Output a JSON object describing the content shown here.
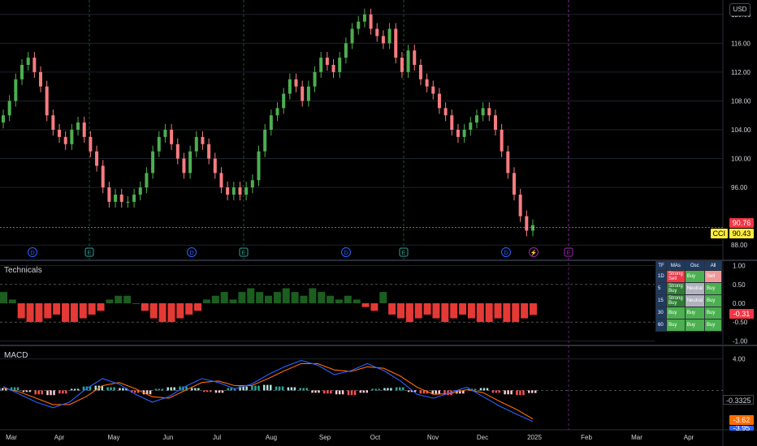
{
  "currency": "USD",
  "price_axis": {
    "ticks": [
      "120.00",
      "116.00",
      "112.00",
      "108.00",
      "104.00",
      "100.00",
      "96.00",
      "88.00"
    ]
  },
  "price_tags": {
    "last": "90.76",
    "cci_label": "CCI",
    "cci_value": "90.43"
  },
  "colors": {
    "up": "#26a69a",
    "up_candle": "#4caf50",
    "down_candle": "#f77c80",
    "bg": "#000000",
    "grid": "#1e222d",
    "macd": "#2962ff",
    "signal": "#ff6d00"
  },
  "event_markers": [
    {
      "letter": "D",
      "kind": "dividend"
    },
    {
      "letter": "E",
      "kind": "earnings"
    },
    {
      "letter": "D",
      "kind": "dividend"
    },
    {
      "letter": "E",
      "kind": "earnings"
    },
    {
      "letter": "D",
      "kind": "dividend"
    },
    {
      "letter": "E",
      "kind": "earnings"
    },
    {
      "letter": "D",
      "kind": "dividend"
    },
    {
      "letter": "",
      "kind": "lightning"
    },
    {
      "letter": "E",
      "kind": "earnings-future"
    }
  ],
  "technicals": {
    "title": "Technicals",
    "axis_ticks": [
      "1.00",
      "0.50",
      "0.00",
      "-0.50",
      "-1.00"
    ],
    "current_value": "-0.31",
    "table": {
      "headers": [
        "TF",
        "MAs",
        "Osc",
        "All"
      ],
      "rows": [
        {
          "tf": "1D",
          "mas": "Strong Sell",
          "osc": "Buy",
          "all": "Sell"
        },
        {
          "tf": "5",
          "mas": "Strong Buy",
          "osc": "Neutral",
          "all": "Buy"
        },
        {
          "tf": "15",
          "mas": "Strong Buy",
          "osc": "Neutral",
          "all": "Buy"
        },
        {
          "tf": "30",
          "mas": "Buy",
          "osc": "Buy",
          "all": "Buy"
        },
        {
          "tf": "60",
          "mas": "Buy",
          "osc": "Buy",
          "all": "Buy"
        }
      ]
    }
  },
  "macd": {
    "title": "MACD",
    "axis_ticks": [
      "4.00"
    ],
    "value_hist": "-0.3325",
    "value_signal": "-3.62",
    "value_macd": "-3.95"
  },
  "x_axis": [
    "Mar",
    "Apr",
    "May",
    "Jun",
    "Jul",
    "Aug",
    "Sep",
    "Oct",
    "Nov",
    "Dec",
    "2025",
    "Feb",
    "Mar",
    "Apr"
  ],
  "chart_data": {
    "type": "candlestick",
    "price_series_closes": [
      106,
      108,
      111,
      113,
      114,
      112,
      110,
      106,
      104,
      103,
      102,
      104,
      105,
      103,
      101,
      99,
      96,
      94,
      95,
      94,
      94,
      95,
      96,
      98,
      101,
      103,
      104,
      102,
      100,
      98,
      101,
      103,
      102,
      100,
      98,
      96,
      95,
      96,
      95,
      96,
      97,
      101,
      104,
      106,
      107,
      109,
      111,
      110,
      108,
      110,
      112,
      114,
      113,
      112,
      114,
      116,
      118,
      119,
      120,
      118,
      117,
      116,
      118,
      114,
      112,
      115,
      113,
      111,
      110,
      109,
      107,
      106,
      104,
      103,
      104,
      105,
      106,
      107,
      106,
      104,
      101,
      98,
      95,
      92,
      90,
      90.76
    ],
    "ylim": [
      86,
      122
    ],
    "technicals_values": [
      0.3,
      0.1,
      -0.4,
      -0.5,
      -0.5,
      -0.4,
      -0.3,
      -0.5,
      -0.5,
      -0.4,
      -0.3,
      -0.2,
      0.1,
      0.2,
      0.2,
      0.0,
      -0.2,
      -0.4,
      -0.5,
      -0.5,
      -0.4,
      -0.3,
      -0.2,
      0.1,
      0.2,
      0.3,
      0.1,
      0.3,
      0.4,
      0.3,
      0.2,
      0.3,
      0.4,
      0.3,
      0.2,
      0.4,
      0.3,
      0.2,
      0.1,
      0.2,
      0.1,
      -0.1,
      -0.2,
      0.3,
      -0.3,
      -0.4,
      -0.5,
      -0.4,
      -0.3,
      -0.4,
      -0.5,
      -0.4,
      -0.3,
      -0.4,
      -0.5,
      -0.5,
      -0.4,
      -0.5,
      -0.5,
      -0.4,
      -0.31
    ],
    "technicals_ylim": [
      -1.1,
      1.1
    ],
    "macd_hist": [
      0.3,
      0.4,
      -0.2,
      -0.5,
      -0.6,
      -0.4,
      0.2,
      0.5,
      0.6,
      0.4,
      0.3,
      -0.3,
      -0.5,
      0.2,
      0.4,
      0.5,
      0.3,
      -0.2,
      -0.3,
      0.3,
      0.5,
      0.6,
      0.7,
      0.5,
      0.4,
      0.3,
      -0.3,
      -0.4,
      -0.5,
      -0.6,
      -0.3,
      0.2,
      0.3,
      0.4,
      -0.2,
      -0.4,
      -0.5,
      -0.6,
      -0.4,
      0.2,
      0.3,
      -0.3,
      -0.5,
      -0.6,
      -0.33
    ],
    "macd_line": [
      0.5,
      -0.5,
      -1.5,
      -2.2,
      -1.5,
      0.2,
      1.5,
      0.8,
      -0.5,
      -1.5,
      -0.8,
      0.5,
      1.5,
      1.0,
      0.2,
      0.8,
      2.0,
      3.0,
      3.8,
      3.2,
      2.0,
      2.5,
      3.4,
      2.5,
      1.2,
      -0.5,
      -1.0,
      -0.3,
      0.4,
      -0.8,
      -2.0,
      -3.0,
      -3.95
    ],
    "macd_signal": [
      0.3,
      -0.2,
      -1.0,
      -1.8,
      -1.8,
      -0.8,
      0.6,
      1.0,
      0.2,
      -0.8,
      -1.0,
      0.0,
      1.0,
      1.2,
      0.6,
      0.6,
      1.5,
      2.5,
      3.4,
      3.4,
      2.6,
      2.4,
      3.0,
      2.8,
      1.8,
      0.4,
      -0.5,
      -0.4,
      0.1,
      -0.3,
      -1.4,
      -2.4,
      -3.62
    ],
    "macd_ylim": [
      -5,
      5.5
    ]
  }
}
